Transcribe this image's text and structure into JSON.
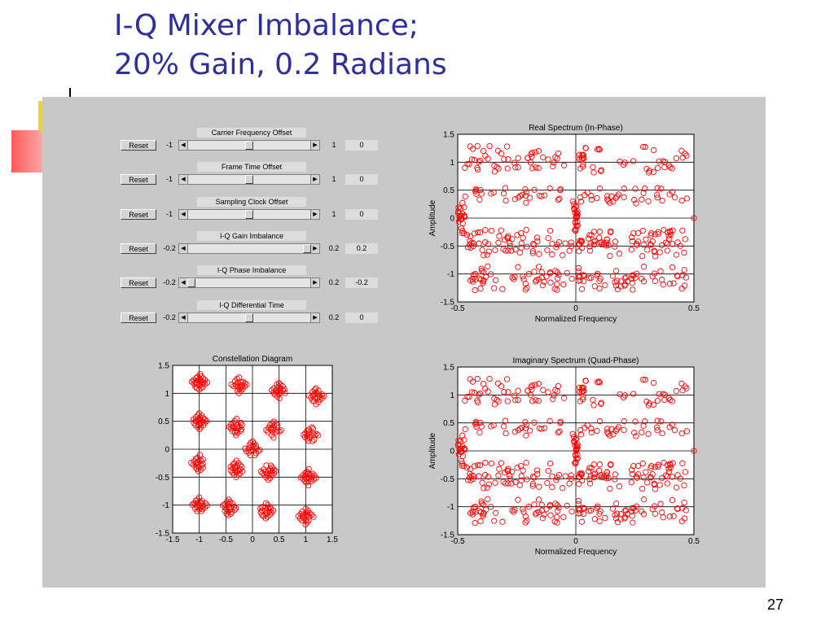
{
  "slide": {
    "title_line1": "I-Q Mixer Imbalance;",
    "title_line2": "20% Gain, 0.2 Radians",
    "page_number": "27"
  },
  "controls": [
    {
      "title": "Carrier Frequency Offset",
      "reset": "Reset",
      "min": "-1",
      "max": "1",
      "value": "0",
      "thumb_fraction": 0.5
    },
    {
      "title": "Frame Time Offset",
      "reset": "Reset",
      "min": "-1",
      "max": "1",
      "value": "0",
      "thumb_fraction": 0.5
    },
    {
      "title": "Sampling Clock Offset",
      "reset": "Reset",
      "min": "-1",
      "max": "1",
      "value": "0",
      "thumb_fraction": 0.5
    },
    {
      "title": "I-Q Gain Imbalance",
      "reset": "Reset",
      "min": "-0.2",
      "max": "0.2",
      "value": "0.2",
      "thumb_fraction": 1.0
    },
    {
      "title": "I-Q Phase Imbalance",
      "reset": "Reset",
      "min": "-0.2",
      "max": "0.2",
      "value": "-0.2",
      "thumb_fraction": 0.0
    },
    {
      "title": "I-Q Differential Time",
      "reset": "Reset",
      "min": "-0.2",
      "max": "0.2",
      "value": "0",
      "thumb_fraction": 0.5
    }
  ],
  "colors": {
    "marker": "#ff0000",
    "title": "#2e2e9c",
    "panel": "#c8c8c8"
  },
  "chart_data": [
    {
      "type": "scatter",
      "title": "Constellation Diagram",
      "xlabel": "",
      "ylabel": "",
      "xlim": [
        -1.5,
        1.5
      ],
      "ylim": [
        -1.5,
        1.5
      ],
      "xticks": [
        "-1.5",
        "-1",
        "-0.5",
        "0",
        "0.5",
        "1",
        "1.5"
      ],
      "yticks": [
        "1.5",
        "1",
        "0.5",
        "0",
        "-0.5",
        "-1",
        "-1.5"
      ],
      "grid": true,
      "cluster_centers": [
        [
          -1,
          1.2
        ],
        [
          -0.25,
          1.15
        ],
        [
          0.5,
          1.05
        ],
        [
          1.2,
          0.95
        ],
        [
          -1,
          0.5
        ],
        [
          -0.3,
          0.4
        ],
        [
          0.4,
          0.35
        ],
        [
          1.1,
          0.25
        ],
        [
          0,
          0
        ],
        [
          -1,
          -0.25
        ],
        [
          -0.3,
          -0.35
        ],
        [
          0.3,
          -0.4
        ],
        [
          1.05,
          -0.5
        ],
        [
          -1,
          -1.0
        ],
        [
          -0.45,
          -1.05
        ],
        [
          0.25,
          -1.1
        ],
        [
          1.0,
          -1.2
        ]
      ],
      "marker": "circle"
    },
    {
      "type": "scatter",
      "title": "Real Spectrum (In-Phase)",
      "xlabel": "Normalized Frequency",
      "ylabel": "Amplitude",
      "xlim": [
        -0.5,
        0.5
      ],
      "ylim": [
        -1.5,
        1.5
      ],
      "xticks": [
        "-0.5",
        "0",
        "0.5"
      ],
      "yticks": [
        "1.5",
        "1",
        "0.5",
        "0",
        "-0.5",
        "-1",
        "-1.5"
      ],
      "grid": true,
      "amplitude_bands": [
        1.15,
        0.95,
        0.4,
        -0.35,
        -0.55,
        -1.0,
        -1.15
      ],
      "marker": "circle"
    },
    {
      "type": "scatter",
      "title": "Imaginary Spectrum (Quad-Phase)",
      "xlabel": "Normalized Frequency",
      "ylabel": "Amplitude",
      "xlim": [
        -0.5,
        0.5
      ],
      "ylim": [
        -1.5,
        1.5
      ],
      "xticks": [
        "-0.5",
        "0",
        "0.5"
      ],
      "yticks": [
        "1.5",
        "1",
        "0.5",
        "0",
        "-0.5",
        "-1",
        "-1.5"
      ],
      "grid": true,
      "amplitude_bands": [
        1.15,
        0.95,
        0.4,
        -0.35,
        -0.55,
        -1.0,
        -1.15
      ],
      "marker": "circle"
    }
  ]
}
